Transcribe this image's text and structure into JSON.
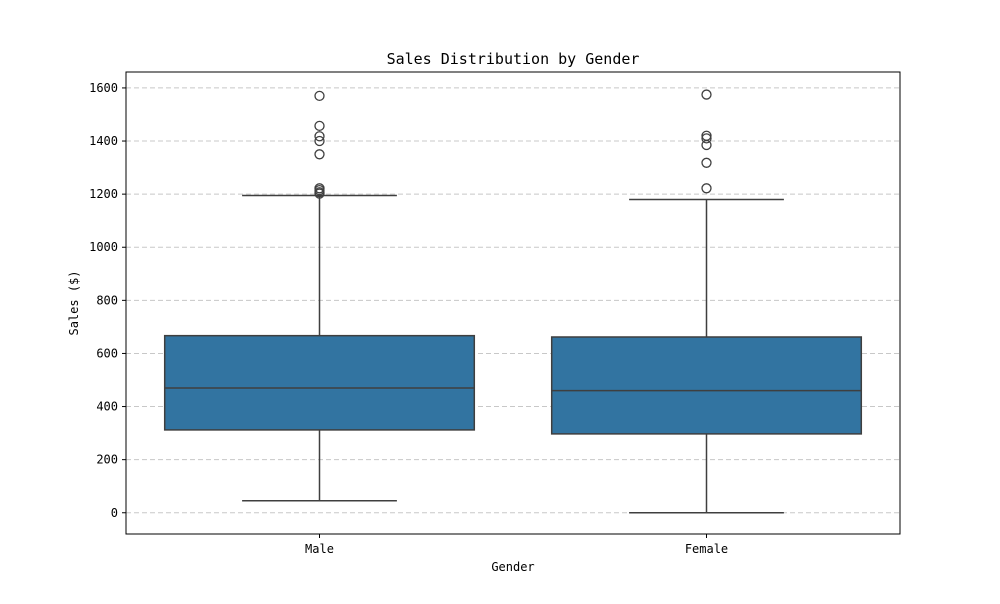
{
  "chart_data": {
    "type": "box",
    "title": "Sales Distribution by Gender",
    "xlabel": "Gender",
    "ylabel": "Sales ($)",
    "ylim": [
      -80,
      1660
    ],
    "yticks": [
      0,
      200,
      400,
      600,
      800,
      1000,
      1200,
      1400,
      1600
    ],
    "grid": "y-dashed",
    "categories": [
      "Male",
      "Female"
    ],
    "boxes": [
      {
        "category": "Male",
        "whisker_low": 45,
        "q1": 312,
        "median": 470,
        "q3": 667,
        "whisker_high": 1195,
        "outliers": [
          1202,
          1207,
          1215,
          1222,
          1350,
          1400,
          1418,
          1457,
          1570
        ]
      },
      {
        "category": "Female",
        "whisker_low": 0,
        "q1": 297,
        "median": 460,
        "q3": 662,
        "whisker_high": 1180,
        "outliers": [
          1222,
          1318,
          1385,
          1410,
          1420,
          1575
        ]
      }
    ],
    "colors": {
      "box_fill": "#3274a1",
      "line": "#3f3f3f",
      "grid": "#c8c8c8",
      "frame": "#000000"
    }
  }
}
